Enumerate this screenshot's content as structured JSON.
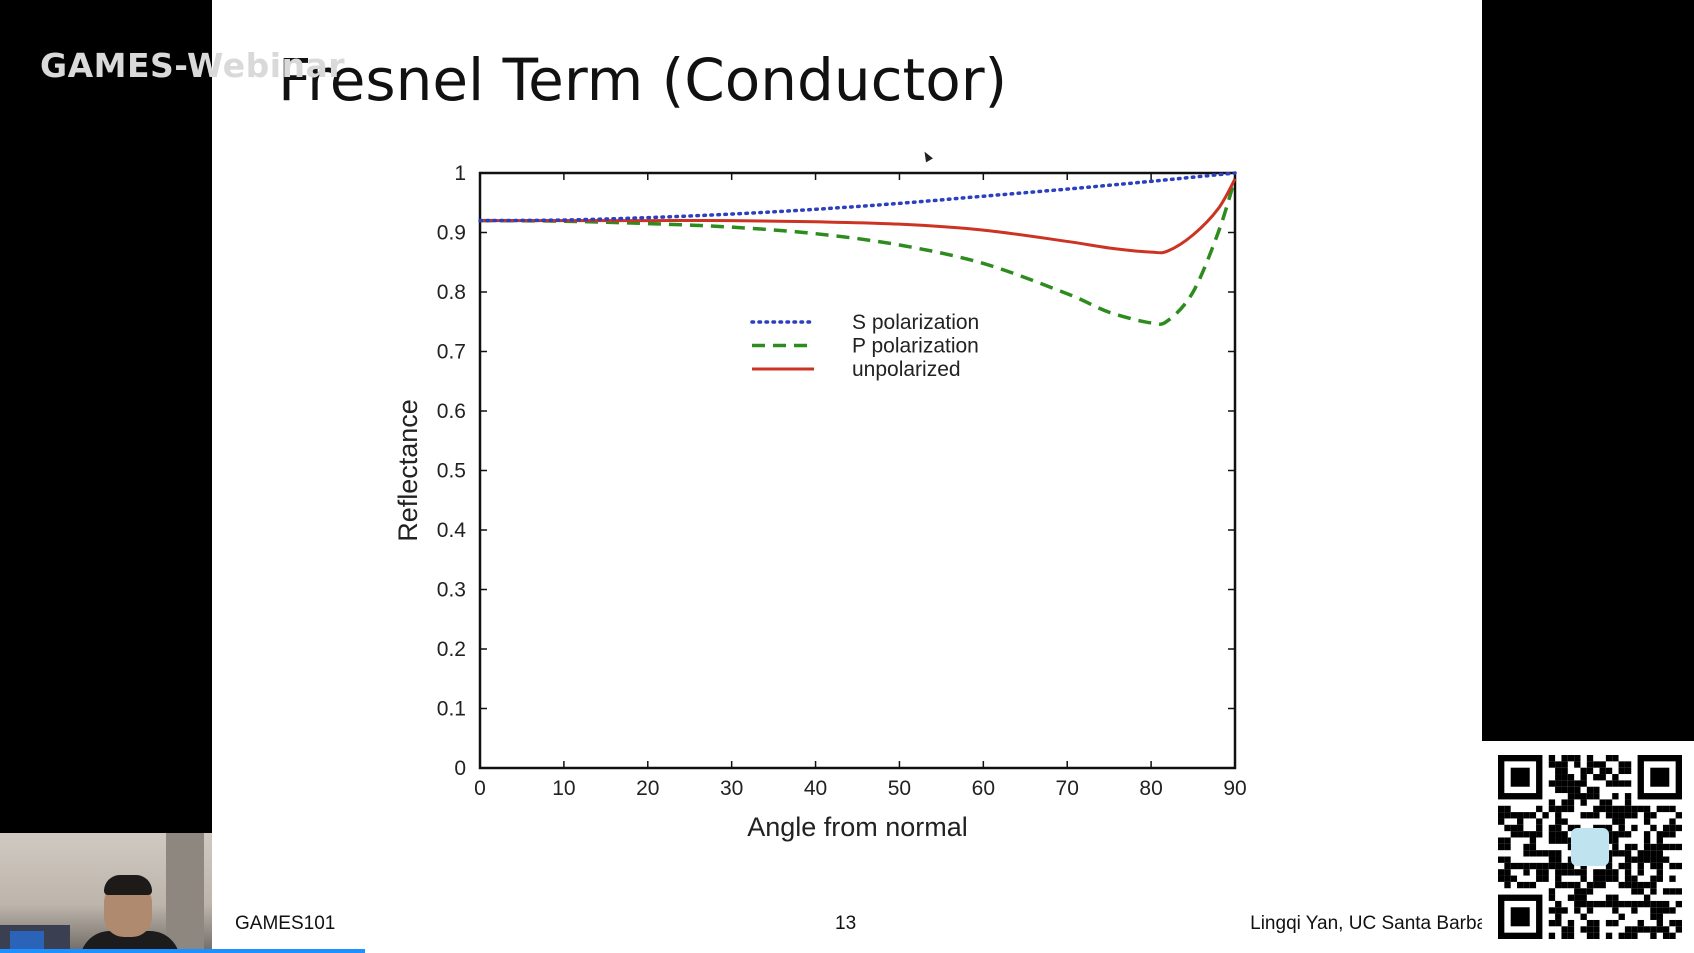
{
  "overlay": {
    "watermark": "GAMES-Webinar"
  },
  "slide": {
    "title": "Fresnel Term (Conductor)",
    "footer_left": "GAMES101",
    "page_number": "13",
    "footer_right": "Lingqi Yan, UC Santa Barbara"
  },
  "colors": {
    "s_polarization": "#2b3fbf",
    "p_polarization": "#2e8b1e",
    "unpolarized": "#cc3322",
    "progress": "#1e90ff"
  },
  "chart_data": {
    "type": "line",
    "title": "",
    "xlabel": "Angle from normal",
    "ylabel": "Reflectance",
    "xlim": [
      0,
      90
    ],
    "ylim": [
      0,
      1
    ],
    "xticks": [
      "0",
      "10",
      "20",
      "30",
      "40",
      "50",
      "60",
      "70",
      "80",
      "90"
    ],
    "yticks": [
      "0",
      "0.1",
      "0.2",
      "0.3",
      "0.4",
      "0.5",
      "0.6",
      "0.7",
      "0.8",
      "0.9",
      "1"
    ],
    "legend_position": "top-center",
    "grid": false,
    "series": [
      {
        "name": "S polarization",
        "style": "dotted",
        "x": [
          0,
          10,
          20,
          30,
          40,
          50,
          60,
          70,
          80,
          85,
          90
        ],
        "y": [
          0.92,
          0.921,
          0.925,
          0.931,
          0.939,
          0.949,
          0.961,
          0.973,
          0.986,
          0.993,
          1.0
        ]
      },
      {
        "name": "P polarization",
        "style": "dashed",
        "x": [
          0,
          10,
          20,
          30,
          40,
          50,
          60,
          70,
          75,
          80,
          82,
          85,
          88,
          90
        ],
        "y": [
          0.92,
          0.919,
          0.915,
          0.909,
          0.898,
          0.879,
          0.848,
          0.797,
          0.766,
          0.748,
          0.752,
          0.8,
          0.9,
          0.99
        ]
      },
      {
        "name": "unpolarized",
        "style": "solid",
        "x": [
          0,
          10,
          20,
          30,
          40,
          50,
          60,
          70,
          75,
          80,
          82,
          85,
          88,
          90
        ],
        "y": [
          0.92,
          0.92,
          0.92,
          0.92,
          0.918,
          0.914,
          0.904,
          0.885,
          0.874,
          0.867,
          0.869,
          0.896,
          0.94,
          0.99
        ]
      }
    ]
  }
}
